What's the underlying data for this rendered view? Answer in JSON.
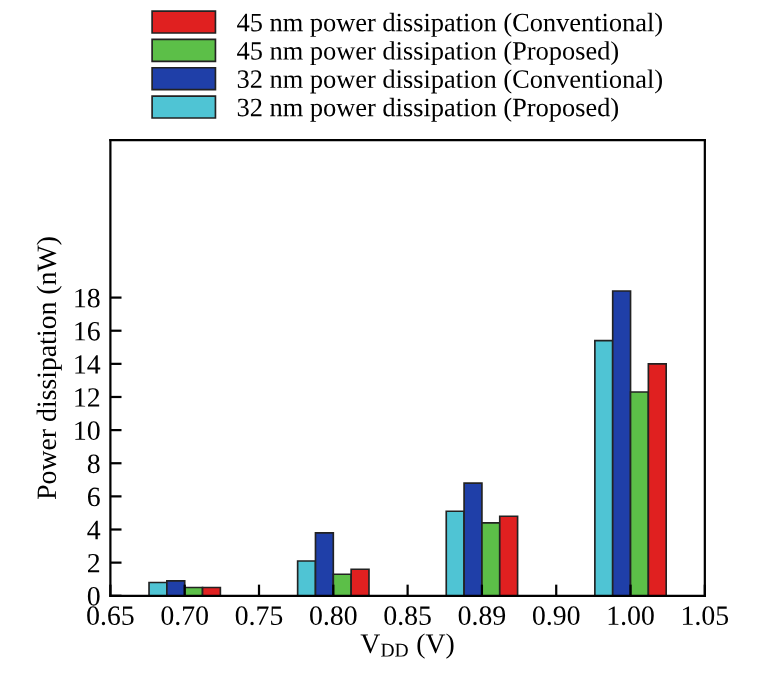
{
  "chart_data": {
    "type": "bar",
    "xlabel": "V$_{DD}$ (V)",
    "ylabel": "Power dissipation (nW)",
    "categories": [
      "0.65",
      "0.70",
      "0.75",
      "0.80",
      "0.85",
      "0.89",
      "0.90",
      "1.00",
      "1.05"
    ],
    "series": [
      {
        "name": "32 nm power dissipation (Proposed)",
        "color": "#4fc4d4",
        "values": [
          null,
          0.8,
          null,
          2.1,
          null,
          5.1,
          null,
          15.4,
          null
        ]
      },
      {
        "name": "32 nm power dissipation (Conventional)",
        "color": "#1f3fa8",
        "values": [
          null,
          0.9,
          null,
          3.8,
          null,
          6.8,
          null,
          18.4,
          null
        ]
      },
      {
        "name": "45 nm power dissipation (Proposed)",
        "color": "#5cbf48",
        "values": [
          null,
          0.5,
          null,
          1.3,
          null,
          4.4,
          null,
          12.3,
          null
        ]
      },
      {
        "name": "45 nm power dissipation (Conventional)",
        "color": "#e02020",
        "values": [
          null,
          0.5,
          null,
          1.6,
          null,
          4.8,
          null,
          14.0,
          null
        ]
      }
    ],
    "ylim": [
      0,
      27.5
    ],
    "yticks": [
      0,
      2,
      4,
      6,
      8,
      10,
      12,
      14,
      16,
      18
    ],
    "grid": false,
    "legend": "top"
  }
}
